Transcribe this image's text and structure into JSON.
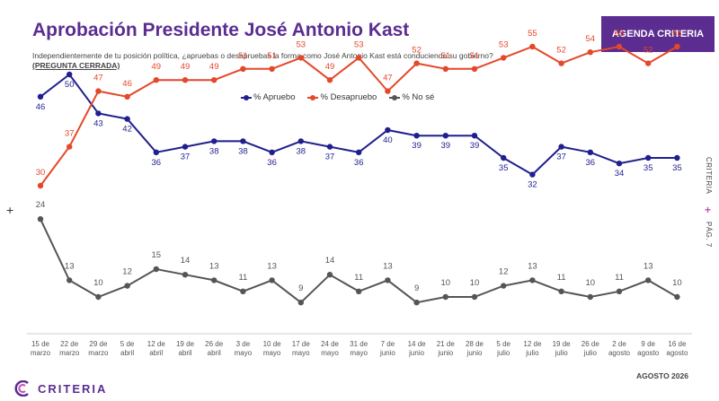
{
  "header": {
    "title": "Aprobación Presidente José Antonio Kast",
    "brand_box": "AGENDA CRITERIA",
    "subtitle": "Independientemente de tu posición política, ¿apruebas o desapruebas la forma como José Antonio Kast está conduciendo su gobierno?",
    "subtitle_note": "(PREGUNTA CERRADA)"
  },
  "side": {
    "label": "CRITERIA",
    "plus": "+",
    "page": "PÁG. 7"
  },
  "left_plus": "+",
  "footer": {
    "period": "AGOSTO 2026",
    "logo": "CRITERIA"
  },
  "colors": {
    "apruebo": "#1f1f8f",
    "desapruebo": "#e5472a",
    "nose": "#555555",
    "brand": "#5b2d91",
    "accent": "#c54fb1"
  },
  "chart_data": {
    "type": "line",
    "title": "",
    "xlabel": "",
    "ylabel": "",
    "legend": "top-center",
    "grid": false,
    "categories": [
      [
        "15 de",
        "marzo"
      ],
      [
        "22 de",
        "marzo"
      ],
      [
        "29 de",
        "marzo"
      ],
      [
        "5 de",
        "abril"
      ],
      [
        "12 de",
        "abril"
      ],
      [
        "19 de",
        "abril"
      ],
      [
        "26 de",
        "abril"
      ],
      [
        "3 de",
        "mayo"
      ],
      [
        "10 de",
        "mayo"
      ],
      [
        "17 de",
        "mayo"
      ],
      [
        "24 de",
        "mayo"
      ],
      [
        "31 de",
        "mayo"
      ],
      [
        "7 de",
        "junio"
      ],
      [
        "14 de",
        "junio"
      ],
      [
        "21 de",
        "junio"
      ],
      [
        "28 de",
        "junio"
      ],
      [
        "5 de",
        "julio"
      ],
      [
        "12 de",
        "julio"
      ],
      [
        "19 de",
        "julio"
      ],
      [
        "26 de",
        "julio"
      ],
      [
        "2 de",
        "agosto"
      ],
      [
        "9 de",
        "agosto"
      ],
      [
        "16 de",
        "agosto"
      ]
    ],
    "series": [
      {
        "name": "% Apruebo",
        "key": "apruebo",
        "values": [
          46,
          50,
          43,
          42,
          36,
          37,
          38,
          38,
          36,
          38,
          37,
          36,
          40,
          39,
          39,
          39,
          35,
          32,
          37,
          36,
          34,
          35,
          35
        ]
      },
      {
        "name": "% Desapruebo",
        "key": "desapruebo",
        "values": [
          30,
          37,
          47,
          46,
          49,
          49,
          49,
          51,
          51,
          53,
          49,
          53,
          47,
          52,
          51,
          51,
          53,
          55,
          52,
          54,
          55,
          52,
          55
        ]
      },
      {
        "name": "% No sé",
        "key": "nose",
        "values": [
          24,
          13,
          10,
          12,
          15,
          14,
          13,
          11,
          13,
          9,
          14,
          11,
          13,
          9,
          10,
          10,
          12,
          13,
          11,
          10,
          11,
          13,
          10
        ]
      }
    ]
  }
}
